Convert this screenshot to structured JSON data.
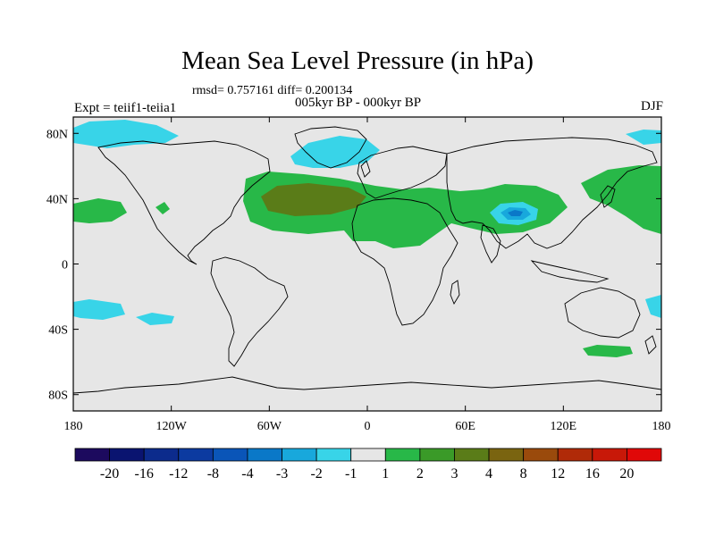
{
  "header": {
    "title": "Mean Sea Level Pressure (in hPa)",
    "stats": "rmsd= 0.757161 diff= 0.200134",
    "subtitle": "005kyr BP - 000kyr BP",
    "left_label": "Expt = teiif1-teiia1",
    "right_label": "DJF"
  },
  "axes": {
    "y_ticks": [
      {
        "value": 80,
        "label": "80N"
      },
      {
        "value": 40,
        "label": "40N"
      },
      {
        "value": 0,
        "label": "0"
      },
      {
        "value": -40,
        "label": "40S"
      },
      {
        "value": -80,
        "label": "80S"
      }
    ],
    "x_ticks": [
      {
        "value": -180,
        "label": "180"
      },
      {
        "value": -120,
        "label": "120W"
      },
      {
        "value": -60,
        "label": "60W"
      },
      {
        "value": 0,
        "label": "0"
      },
      {
        "value": 60,
        "label": "60E"
      },
      {
        "value": 120,
        "label": "120E"
      },
      {
        "value": 180,
        "label": "180"
      }
    ],
    "lon_range": [
      -180,
      180
    ],
    "lat_range": [
      -90,
      90
    ]
  },
  "colorbar": {
    "labels": [
      "-20",
      "-16",
      "-12",
      "-8",
      "-4",
      "-3",
      "-2",
      "-1",
      "1",
      "2",
      "3",
      "4",
      "8",
      "12",
      "16",
      "20"
    ],
    "colors": [
      "#1c0a5e",
      "#0a1470",
      "#0c2b8c",
      "#0c3aa0",
      "#0a55b8",
      "#0a78c8",
      "#18a8dc",
      "#38d4e8",
      "#e6e6e6",
      "#28b848",
      "#3a9a28",
      "#5a7c18",
      "#7a6410",
      "#9a4a0c",
      "#b02a08",
      "#c81808",
      "#e00808"
    ]
  },
  "colors": {
    "background_neutral": "#e6e6e6",
    "positive_weak": "#28b848",
    "positive_mid": "#5a7c18",
    "negative_weak": "#38d4e8",
    "negative_mid": "#18a8dc",
    "negative_strong": "#0a78c8"
  }
}
